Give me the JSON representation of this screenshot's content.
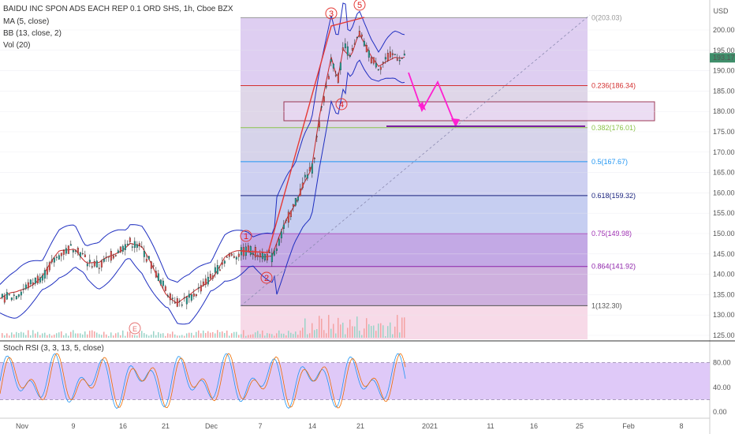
{
  "chart_data": {
    "type": "candlestick",
    "title": "BAIDU INC SPON ADS EACH REP 0.1 ORD SHS, 1h, Cboe BZX",
    "indicators": [
      "MA (5, close)",
      "BB (13, close, 2)",
      "Vol (20)"
    ],
    "currency": "USD",
    "last_price": "193.17",
    "y_ticks": [
      125.0,
      130.0,
      135.0,
      140.0,
      145.0,
      150.0,
      155.0,
      160.0,
      165.0,
      170.0,
      175.0,
      180.0,
      185.0,
      190.0,
      195.0,
      200.0
    ],
    "ylim": [
      124.0,
      204.0
    ],
    "x_ticks": [
      "Nov",
      "9",
      "16",
      "21",
      "Dec",
      "7",
      "14",
      "21",
      "2021",
      "11",
      "16",
      "25",
      "Feb",
      "8"
    ],
    "price_path": [
      [
        0,
        134
      ],
      [
        20,
        135
      ],
      [
        40,
        138
      ],
      [
        55,
        140
      ],
      [
        75,
        145
      ],
      [
        95,
        147
      ],
      [
        110,
        143
      ],
      [
        125,
        142
      ],
      [
        150,
        146
      ],
      [
        165,
        148
      ],
      [
        180,
        146
      ],
      [
        195,
        141
      ],
      [
        210,
        136
      ],
      [
        225,
        133
      ],
      [
        240,
        134
      ],
      [
        255,
        137
      ],
      [
        270,
        140
      ],
      [
        285,
        144
      ],
      [
        300,
        145
      ],
      [
        315,
        146
      ],
      [
        330,
        145
      ],
      [
        345,
        144
      ],
      [
        355,
        149
      ],
      [
        365,
        154
      ],
      [
        375,
        158
      ],
      [
        385,
        163
      ],
      [
        395,
        166
      ],
      [
        405,
        178
      ],
      [
        412,
        185
      ],
      [
        420,
        193
      ],
      [
        428,
        188
      ],
      [
        435,
        196
      ],
      [
        445,
        194
      ],
      [
        455,
        199
      ],
      [
        462,
        196
      ],
      [
        470,
        193
      ],
      [
        480,
        191
      ],
      [
        490,
        193
      ],
      [
        500,
        194
      ],
      [
        510,
        193
      ],
      [
        515,
        193
      ]
    ],
    "fibonacci": [
      {
        "level": "0(203.03)",
        "price": 203.03,
        "color": "#999999"
      },
      {
        "level": "0.236(186.34)",
        "price": 186.34,
        "color": "#d32f2f"
      },
      {
        "level": "0.382(176.01)",
        "price": 176.01,
        "color": "#8bc34a"
      },
      {
        "level": "0.5(167.67)",
        "price": 167.67,
        "color": "#2196f3"
      },
      {
        "level": "0.618(159.32)",
        "price": 159.32,
        "color": "#1a237e"
      },
      {
        "level": "0.75(149.98)",
        "price": 149.98,
        "color": "#9c27b0"
      },
      {
        "level": "0.864(141.92)",
        "price": 141.92,
        "color": "#8e24aa"
      },
      {
        "level": "1(132.30)",
        "price": 132.3,
        "color": "#555555"
      }
    ],
    "wave_labels": [
      "1",
      "2",
      "3",
      "4",
      "5"
    ],
    "earnings_marker": "E",
    "stoch_rsi": {
      "label": "Stoch RSI (3, 3, 13, 5, close)",
      "y_ticks": [
        "80.00",
        "40.00",
        "0.00"
      ],
      "levels": [
        80,
        20
      ]
    }
  }
}
